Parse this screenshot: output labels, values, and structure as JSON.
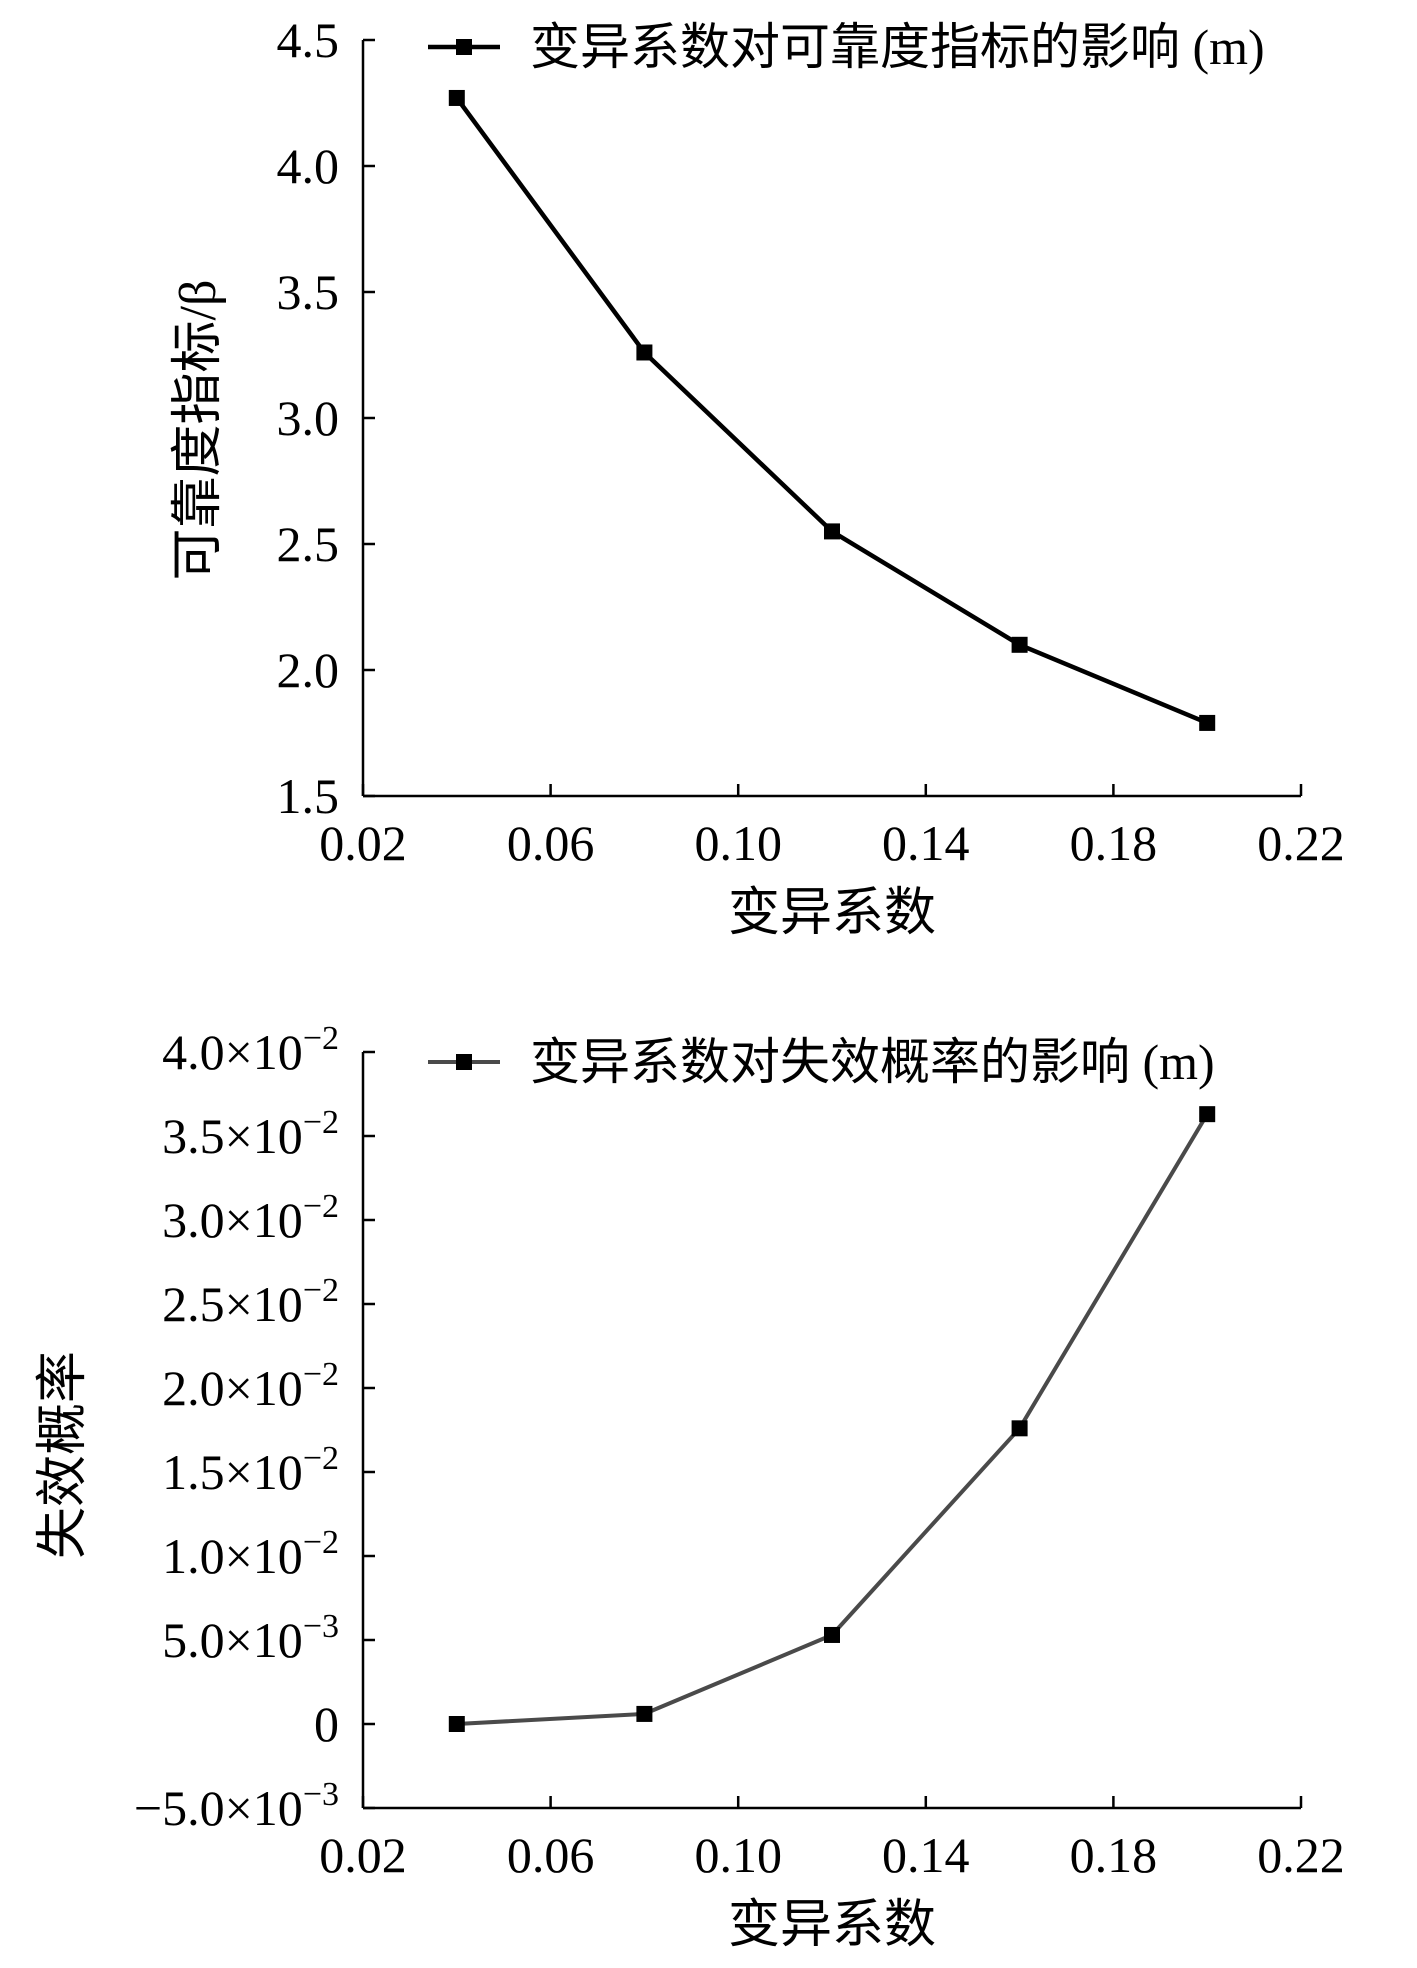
{
  "chart_data": [
    {
      "type": "line",
      "title": "",
      "xlabel": "变异系数",
      "ylabel": "可靠度指标/β",
      "xlim": [
        0.02,
        0.22
      ],
      "ylim": [
        1.5,
        4.5
      ],
      "xticks": [
        "0.02",
        "0.06",
        "0.10",
        "0.14",
        "0.18",
        "0.22"
      ],
      "xtick_values": [
        0.02,
        0.06,
        0.1,
        0.14,
        0.18,
        0.22
      ],
      "yticks": [
        "1.5",
        "2.0",
        "2.5",
        "3.0",
        "3.5",
        "4.0",
        "4.5"
      ],
      "ytick_values": [
        1.5,
        2.0,
        2.5,
        3.0,
        3.5,
        4.0,
        4.5
      ],
      "legend_position": "top",
      "grid": false,
      "series": [
        {
          "name": "变异系数对可靠度指标的影响 (m)",
          "color": "#000000",
          "marker": "square",
          "x": [
            0.04,
            0.08,
            0.12,
            0.16,
            0.2
          ],
          "y": [
            4.27,
            3.26,
            2.55,
            2.1,
            1.79
          ]
        }
      ]
    },
    {
      "type": "line",
      "title": "",
      "xlabel": "变异系数",
      "ylabel": "失效概率",
      "xlim": [
        0.02,
        0.22
      ],
      "ylim": [
        -0.005,
        0.04
      ],
      "xticks": [
        "0.02",
        "0.06",
        "0.10",
        "0.14",
        "0.18",
        "0.22"
      ],
      "xtick_values": [
        0.02,
        0.06,
        0.1,
        0.14,
        0.18,
        0.22
      ],
      "yticks": [
        {
          "value": -0.005,
          "mantissa": "−5.0×10",
          "exp": "−3"
        },
        {
          "value": 0,
          "mantissa": "0",
          "exp": ""
        },
        {
          "value": 0.005,
          "mantissa": "5.0×10",
          "exp": "−3"
        },
        {
          "value": 0.01,
          "mantissa": "1.0×10",
          "exp": "−2"
        },
        {
          "value": 0.015,
          "mantissa": "1.5×10",
          "exp": "−2"
        },
        {
          "value": 0.02,
          "mantissa": "2.0×10",
          "exp": "−2"
        },
        {
          "value": 0.025,
          "mantissa": "2.5×10",
          "exp": "−2"
        },
        {
          "value": 0.03,
          "mantissa": "3.0×10",
          "exp": "−2"
        },
        {
          "value": 0.035,
          "mantissa": "3.5×10",
          "exp": "−2"
        },
        {
          "value": 0.04,
          "mantissa": "4.0×10",
          "exp": "−2"
        }
      ],
      "legend_position": "top",
      "grid": false,
      "series": [
        {
          "name": "变异系数对失效概率的影响 (m)",
          "color": "#4a4a4a",
          "marker": "square",
          "x": [
            0.04,
            0.08,
            0.12,
            0.16,
            0.2
          ],
          "y": [
            0.0,
            0.0006,
            0.0053,
            0.0176,
            0.0363
          ]
        }
      ]
    }
  ]
}
